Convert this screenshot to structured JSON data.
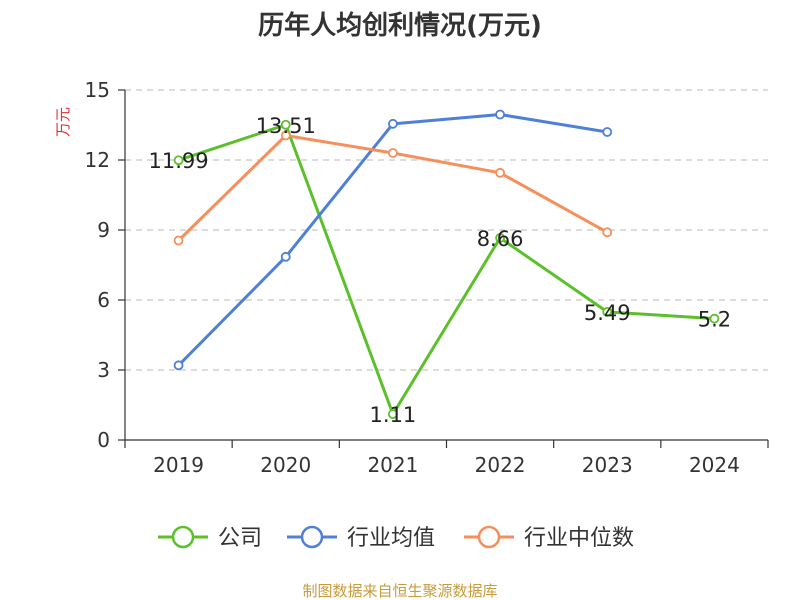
{
  "chart_data": {
    "type": "line",
    "title": "历年人均创利情况(万元)",
    "ylabel": "万元",
    "categories": [
      "2019",
      "2020",
      "2021",
      "2022",
      "2023",
      "2024"
    ],
    "ylim": [
      0,
      15
    ],
    "yticks": [
      0,
      3,
      6,
      9,
      12,
      15
    ],
    "grid": true,
    "legend_position": "bottom",
    "series": [
      {
        "name": "公司",
        "color": "#5cc02a",
        "values": [
          11.99,
          13.51,
          1.11,
          8.66,
          5.49,
          5.2
        ],
        "labels": [
          "11.99",
          "13.51",
          "1.11",
          "8.66",
          "5.49",
          "5.2"
        ]
      },
      {
        "name": "行业均值",
        "color": "#4f80d8",
        "values": [
          3.2,
          7.85,
          13.55,
          13.95,
          13.2,
          null
        ]
      },
      {
        "name": "行业中位数",
        "color": "#f58f5b",
        "values": [
          8.55,
          13.05,
          12.3,
          11.45,
          8.9,
          null
        ]
      }
    ]
  },
  "source_text": "制图数据来自恒生聚源数据库"
}
